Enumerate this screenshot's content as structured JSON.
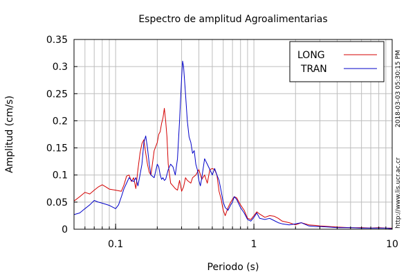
{
  "side_text": {
    "timestamp": "2018-03-03 05:30:15 PM",
    "url": "http://www.lis.ucr.ac.cr"
  },
  "chart_data": {
    "type": "line",
    "title": "Espectro de amplitud Agroalimentarias",
    "xlabel": "Periodo (s)",
    "ylabel": "Amplitud (cm/s)",
    "xscale": "log",
    "xlim": [
      0.05,
      10
    ],
    "ylim": [
      0,
      0.35
    ],
    "grid": true,
    "legend_position": "top-right",
    "x_ticks": [
      {
        "value": 0.1,
        "label": "0.1"
      },
      {
        "value": 1,
        "label": "1"
      },
      {
        "value": 10,
        "label": "10"
      }
    ],
    "y_ticks": [
      {
        "value": 0,
        "label": "0"
      },
      {
        "value": 0.05,
        "label": "0.05"
      },
      {
        "value": 0.1,
        "label": "0.1"
      },
      {
        "value": 0.15,
        "label": "0.15"
      },
      {
        "value": 0.2,
        "label": "0.2"
      },
      {
        "value": 0.25,
        "label": "0.25"
      },
      {
        "value": 0.3,
        "label": "0.3"
      },
      {
        "value": 0.35,
        "label": "0.35"
      }
    ],
    "series": [
      {
        "name": "LONG",
        "color": "#d40000",
        "points": [
          [
            0.05,
            0.052
          ],
          [
            0.055,
            0.06
          ],
          [
            0.06,
            0.068
          ],
          [
            0.065,
            0.065
          ],
          [
            0.07,
            0.072
          ],
          [
            0.075,
            0.078
          ],
          [
            0.08,
            0.082
          ],
          [
            0.085,
            0.078
          ],
          [
            0.09,
            0.074
          ],
          [
            0.1,
            0.072
          ],
          [
            0.11,
            0.07
          ],
          [
            0.115,
            0.082
          ],
          [
            0.12,
            0.098
          ],
          [
            0.125,
            0.1
          ],
          [
            0.13,
            0.088
          ],
          [
            0.135,
            0.095
          ],
          [
            0.14,
            0.075
          ],
          [
            0.145,
            0.11
          ],
          [
            0.15,
            0.14
          ],
          [
            0.155,
            0.158
          ],
          [
            0.16,
            0.165
          ],
          [
            0.165,
            0.14
          ],
          [
            0.17,
            0.12
          ],
          [
            0.175,
            0.105
          ],
          [
            0.18,
            0.1
          ],
          [
            0.19,
            0.145
          ],
          [
            0.2,
            0.16
          ],
          [
            0.205,
            0.175
          ],
          [
            0.21,
            0.18
          ],
          [
            0.215,
            0.195
          ],
          [
            0.22,
            0.205
          ],
          [
            0.225,
            0.223
          ],
          [
            0.23,
            0.2
          ],
          [
            0.235,
            0.17
          ],
          [
            0.24,
            0.12
          ],
          [
            0.25,
            0.085
          ],
          [
            0.26,
            0.08
          ],
          [
            0.27,
            0.075
          ],
          [
            0.28,
            0.072
          ],
          [
            0.29,
            0.09
          ],
          [
            0.3,
            0.07
          ],
          [
            0.31,
            0.078
          ],
          [
            0.32,
            0.095
          ],
          [
            0.33,
            0.09
          ],
          [
            0.35,
            0.085
          ],
          [
            0.36,
            0.095
          ],
          [
            0.38,
            0.1
          ],
          [
            0.4,
            0.11
          ],
          [
            0.42,
            0.092
          ],
          [
            0.44,
            0.1
          ],
          [
            0.46,
            0.085
          ],
          [
            0.48,
            0.11
          ],
          [
            0.5,
            0.112
          ],
          [
            0.52,
            0.11
          ],
          [
            0.54,
            0.1
          ],
          [
            0.56,
            0.07
          ],
          [
            0.58,
            0.055
          ],
          [
            0.6,
            0.035
          ],
          [
            0.62,
            0.025
          ],
          [
            0.65,
            0.04
          ],
          [
            0.68,
            0.05
          ],
          [
            0.7,
            0.055
          ],
          [
            0.72,
            0.06
          ],
          [
            0.75,
            0.058
          ],
          [
            0.8,
            0.045
          ],
          [
            0.85,
            0.035
          ],
          [
            0.9,
            0.02
          ],
          [
            0.95,
            0.018
          ],
          [
            1,
            0.025
          ],
          [
            1.05,
            0.032
          ],
          [
            1.1,
            0.028
          ],
          [
            1.2,
            0.022
          ],
          [
            1.3,
            0.025
          ],
          [
            1.4,
            0.024
          ],
          [
            1.5,
            0.02
          ],
          [
            1.6,
            0.015
          ],
          [
            1.8,
            0.012
          ],
          [
            2,
            0.008
          ],
          [
            2.2,
            0.012
          ],
          [
            2.5,
            0.008
          ],
          [
            2.8,
            0.007
          ],
          [
            3,
            0.006
          ],
          [
            3.5,
            0.005
          ],
          [
            4,
            0.004
          ],
          [
            5,
            0.003
          ],
          [
            6,
            0.003
          ],
          [
            7,
            0.002
          ],
          [
            8,
            0.003
          ],
          [
            9,
            0.002
          ],
          [
            10,
            0.002
          ]
        ]
      },
      {
        "name": "TRAN",
        "color": "#0000c8",
        "points": [
          [
            0.05,
            0.027
          ],
          [
            0.055,
            0.03
          ],
          [
            0.06,
            0.038
          ],
          [
            0.065,
            0.045
          ],
          [
            0.07,
            0.053
          ],
          [
            0.075,
            0.05
          ],
          [
            0.08,
            0.048
          ],
          [
            0.085,
            0.046
          ],
          [
            0.09,
            0.044
          ],
          [
            0.1,
            0.038
          ],
          [
            0.105,
            0.045
          ],
          [
            0.11,
            0.06
          ],
          [
            0.115,
            0.075
          ],
          [
            0.12,
            0.085
          ],
          [
            0.125,
            0.095
          ],
          [
            0.13,
            0.09
          ],
          [
            0.135,
            0.088
          ],
          [
            0.14,
            0.095
          ],
          [
            0.145,
            0.08
          ],
          [
            0.15,
            0.1
          ],
          [
            0.155,
            0.12
          ],
          [
            0.16,
            0.16
          ],
          [
            0.165,
            0.172
          ],
          [
            0.17,
            0.15
          ],
          [
            0.175,
            0.12
          ],
          [
            0.18,
            0.1
          ],
          [
            0.19,
            0.095
          ],
          [
            0.2,
            0.12
          ],
          [
            0.205,
            0.115
          ],
          [
            0.21,
            0.1
          ],
          [
            0.215,
            0.092
          ],
          [
            0.22,
            0.095
          ],
          [
            0.225,
            0.09
          ],
          [
            0.23,
            0.092
          ],
          [
            0.24,
            0.11
          ],
          [
            0.25,
            0.12
          ],
          [
            0.26,
            0.115
          ],
          [
            0.27,
            0.1
          ],
          [
            0.28,
            0.13
          ],
          [
            0.29,
            0.2
          ],
          [
            0.3,
            0.28
          ],
          [
            0.305,
            0.31
          ],
          [
            0.31,
            0.3
          ],
          [
            0.32,
            0.25
          ],
          [
            0.33,
            0.2
          ],
          [
            0.34,
            0.17
          ],
          [
            0.35,
            0.16
          ],
          [
            0.36,
            0.14
          ],
          [
            0.37,
            0.145
          ],
          [
            0.38,
            0.12
          ],
          [
            0.39,
            0.11
          ],
          [
            0.4,
            0.09
          ],
          [
            0.41,
            0.08
          ],
          [
            0.42,
            0.095
          ],
          [
            0.44,
            0.13
          ],
          [
            0.46,
            0.12
          ],
          [
            0.48,
            0.11
          ],
          [
            0.5,
            0.1
          ],
          [
            0.52,
            0.112
          ],
          [
            0.54,
            0.1
          ],
          [
            0.56,
            0.09
          ],
          [
            0.58,
            0.07
          ],
          [
            0.6,
            0.05
          ],
          [
            0.62,
            0.04
          ],
          [
            0.65,
            0.035
          ],
          [
            0.68,
            0.045
          ],
          [
            0.7,
            0.05
          ],
          [
            0.72,
            0.06
          ],
          [
            0.75,
            0.055
          ],
          [
            0.8,
            0.04
          ],
          [
            0.85,
            0.03
          ],
          [
            0.9,
            0.018
          ],
          [
            0.95,
            0.015
          ],
          [
            1,
            0.022
          ],
          [
            1.05,
            0.03
          ],
          [
            1.1,
            0.02
          ],
          [
            1.2,
            0.018
          ],
          [
            1.3,
            0.02
          ],
          [
            1.4,
            0.016
          ],
          [
            1.5,
            0.012
          ],
          [
            1.6,
            0.01
          ],
          [
            1.8,
            0.008
          ],
          [
            2,
            0.01
          ],
          [
            2.2,
            0.012
          ],
          [
            2.5,
            0.006
          ],
          [
            2.8,
            0.005
          ],
          [
            3,
            0.005
          ],
          [
            3.5,
            0.004
          ],
          [
            4,
            0.003
          ],
          [
            5,
            0.003
          ],
          [
            6,
            0.002
          ],
          [
            7,
            0.002
          ],
          [
            8,
            0.002
          ],
          [
            9,
            0.002
          ],
          [
            10,
            0.001
          ]
        ]
      }
    ]
  }
}
